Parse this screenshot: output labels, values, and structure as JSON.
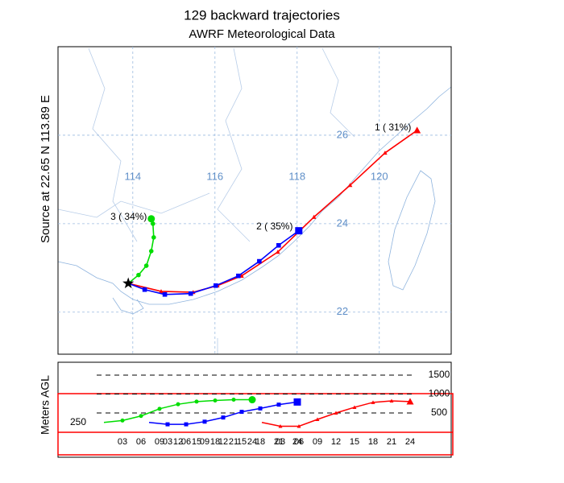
{
  "chart_data": {
    "type": "trajectory",
    "title": "129 backward trajectories",
    "subtitle": "AWRF Meteorological Data",
    "source_text": "Source      at     22.65 N    113.89 E",
    "source": {
      "lon": 113.89,
      "lat": 22.65
    },
    "xlim": [
      112.18,
      121.75
    ],
    "ylim": [
      21.05,
      28.0
    ],
    "xticks": [
      114,
      116,
      118,
      120
    ],
    "yticks": [
      22,
      24,
      26
    ],
    "series": [
      {
        "name": "1 ( 31%)",
        "color": "#ff0000",
        "marker": "triangle",
        "lon": [
          113.89,
          114.69,
          115.47,
          116.06,
          116.65,
          117.53,
          118.41,
          119.29,
          120.14,
          120.92
        ],
        "lat": [
          22.65,
          22.47,
          22.45,
          22.6,
          22.82,
          23.36,
          24.15,
          24.87,
          25.6,
          26.11
        ]
      },
      {
        "name": "2 ( 35%)",
        "color": "#0000ff",
        "marker": "square",
        "lon": [
          113.89,
          114.29,
          114.78,
          115.41,
          116.02,
          116.57,
          117.08,
          117.55,
          118.04
        ],
        "lat": [
          22.65,
          22.51,
          22.4,
          22.42,
          22.6,
          22.82,
          23.15,
          23.51,
          23.84
        ]
      },
      {
        "name": "3 ( 34%)",
        "color": "#00dd00",
        "marker": "circle",
        "lon": [
          113.89,
          114.14,
          114.33,
          114.45,
          114.51,
          114.49,
          114.45
        ],
        "lat": [
          22.65,
          22.84,
          23.05,
          23.38,
          23.69,
          24.0,
          24.11
        ]
      }
    ],
    "height_panel": {
      "ylabel": "Meters AGL",
      "source_height": 250,
      "ylim": [
        -670,
        1840
      ],
      "yticks": [
        500,
        1000,
        1500
      ],
      "hours": [
        0,
        3,
        6,
        9,
        12,
        15,
        18,
        21,
        24
      ],
      "xticks": [
        {
          "value": 3,
          "label": "03"
        },
        {
          "value": 6,
          "label": "06"
        },
        {
          "value": 9,
          "label": "09"
        },
        {
          "value": 12,
          "label": "12"
        },
        {
          "value": 15,
          "label": "15"
        },
        {
          "value": 18,
          "label": "18"
        },
        {
          "value": 21,
          "label": "21"
        },
        {
          "value": 24,
          "label": "24"
        }
      ],
      "heights": [
        [
          250,
          150,
          150,
          330,
          500,
          650,
          780,
          820,
          800
        ],
        [
          250,
          200,
          200,
          270,
          380,
          530,
          620,
          720,
          790
        ],
        [
          250,
          300,
          420,
          610,
          730,
          800,
          830,
          850,
          850
        ]
      ]
    }
  }
}
